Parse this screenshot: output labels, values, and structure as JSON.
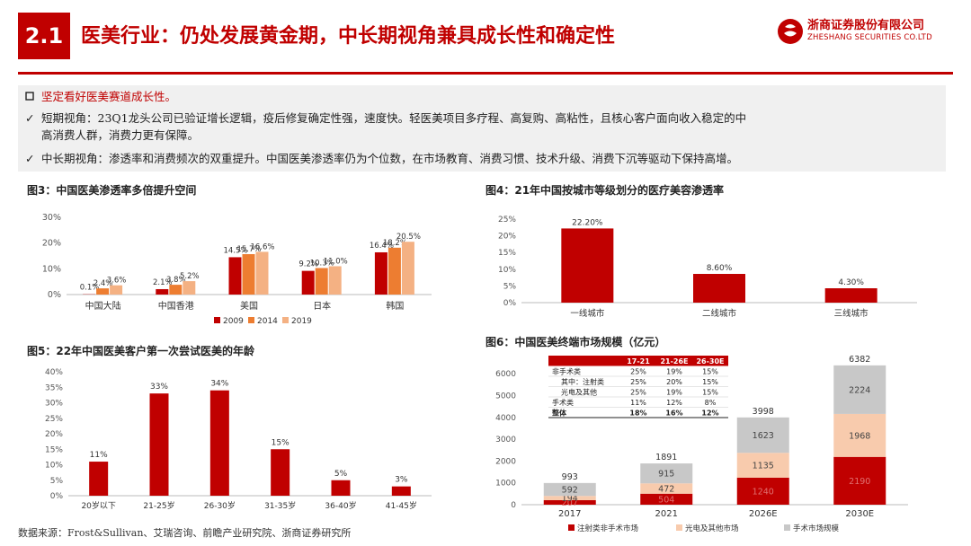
{
  "header": {
    "section_no": "2.1",
    "title": "医美行业：仍处发展黄金期，中长期视角兼具成长性和确定性",
    "logo_cn": "浙商证券股份有限公司",
    "logo_en": "ZHESHANG SECURITIES CO.LTD"
  },
  "summary": {
    "heading": "坚定看好医美赛道成长性。",
    "point1_line1": "短期视角：23Q1龙头公司已验证增长逻辑，疫后修复确定性强，速度快。轻医美项目多疗程、高复购、高粘性，且核心客户面向收入稳定的中",
    "point1_line2": "高消费人群，消费力更有保障。",
    "point2": "中长期视角：渗透率和消费频次的双重提升。中国医美渗透率仍为个位数，在市场教育、消费习惯、技术升级、消费下沉等驱动下保持高增。"
  },
  "footer": "数据来源：Frost&Sullivan、艾瑞咨询、前瞻产业研究院、浙商证券研究所",
  "colors": {
    "brand": "#c00000",
    "series_2014": "#ed7d31",
    "series_2019": "#f4b183",
    "grey": "#c8c8c8",
    "light_pink": "#f8cbad"
  },
  "chart_data": [
    {
      "id": "fig3",
      "type": "bar",
      "title": "图3：中国医美渗透率多倍提升空间",
      "categories": [
        "中国大陆",
        "中国香港",
        "美国",
        "日本",
        "韩国"
      ],
      "series": [
        {
          "name": "2009",
          "values": [
            0.1,
            2.1,
            14.5,
            9.2,
            16.4
          ],
          "labels": [
            "0.1%",
            "2.1%",
            "14.5%",
            "9.2%",
            "16.4%"
          ]
        },
        {
          "name": "2014",
          "values": [
            2.4,
            3.8,
            15.7,
            10.3,
            18.2
          ],
          "labels": [
            "2.4%",
            "3.8%",
            "15.7%",
            "10.3%",
            "18.2%"
          ]
        },
        {
          "name": "2019",
          "values": [
            3.6,
            5.2,
            16.6,
            11.0,
            20.5
          ],
          "labels": [
            "3.6%",
            "5.2%",
            "16.6%",
            "11.0%",
            "20.5%"
          ]
        }
      ],
      "ylim": [
        0,
        30
      ],
      "yticks": [
        "0%",
        "10%",
        "20%",
        "30%"
      ],
      "legend": "bottom"
    },
    {
      "id": "fig4",
      "type": "bar",
      "title": "图4：21年中国按城市等级划分的医疗美容渗透率",
      "categories": [
        "一线城市",
        "二线城市",
        "三线城市"
      ],
      "values": [
        22.2,
        8.6,
        4.3
      ],
      "labels": [
        "22.20%",
        "8.60%",
        "4.30%"
      ],
      "ylim": [
        0,
        25
      ],
      "yticks": [
        "0%",
        "5%",
        "10%",
        "15%",
        "20%",
        "25%"
      ]
    },
    {
      "id": "fig5",
      "type": "bar",
      "title": "图5：22年中国医美客户第一次尝试医美的年龄",
      "categories": [
        "20岁以下",
        "21-25岁",
        "26-30岁",
        "31-35岁",
        "36-40岁",
        "41-45岁"
      ],
      "values": [
        11,
        33,
        34,
        15,
        5,
        3
      ],
      "labels": [
        "11%",
        "33%",
        "34%",
        "15%",
        "5%",
        "3%"
      ],
      "ylim": [
        0,
        40
      ],
      "yticks": [
        "0%",
        "5%",
        "10%",
        "15%",
        "20%",
        "25%",
        "30%",
        "35%",
        "40%"
      ]
    },
    {
      "id": "fig6",
      "type": "bar",
      "stacked": true,
      "title": "图6：中国医美终端市场规模（亿元）",
      "categories": [
        "2017",
        "2021",
        "2026E",
        "2030E"
      ],
      "totals": [
        "993",
        "1891",
        "3998",
        "6382"
      ],
      "series": [
        {
          "name": "注射类非手术市场",
          "values": [
            207,
            504,
            1240,
            2190
          ],
          "labels": [
            "207",
            "504",
            "1240",
            "2190"
          ]
        },
        {
          "name": "光电及其他市场",
          "values": [
            194,
            472,
            1135,
            1968
          ],
          "labels": [
            "194",
            "472",
            "1135",
            "1968"
          ]
        },
        {
          "name": "手术市场规模",
          "values": [
            592,
            915,
            1623,
            2224
          ],
          "labels": [
            "592",
            "915",
            "1623",
            "2224"
          ]
        }
      ],
      "ylim": [
        0,
        6500
      ],
      "yticks": [
        "0",
        "1000",
        "2000",
        "3000",
        "4000",
        "5000",
        "6000"
      ],
      "legend": "bottom",
      "table": {
        "headers": [
          "",
          "17-21",
          "21-26E",
          "26-30E"
        ],
        "rows": [
          [
            "非手术类",
            "25%",
            "19%",
            "15%"
          ],
          [
            "其中：注射类",
            "25%",
            "20%",
            "15%"
          ],
          [
            "光电及其他",
            "25%",
            "19%",
            "15%"
          ],
          [
            "手术类",
            "11%",
            "12%",
            "8%"
          ],
          [
            "整体",
            "18%",
            "16%",
            "12%"
          ]
        ]
      }
    }
  ]
}
